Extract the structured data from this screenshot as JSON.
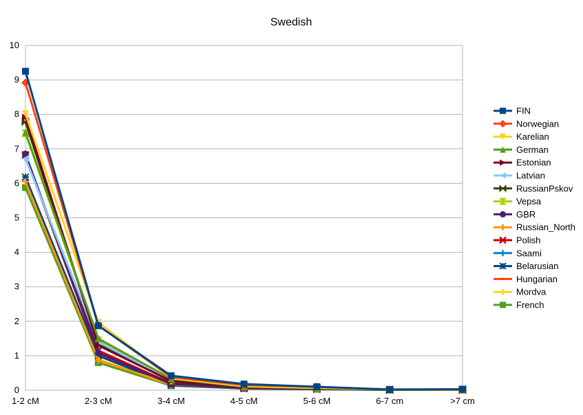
{
  "chart_data": {
    "type": "line",
    "title": "Swedish",
    "xlabel": "",
    "ylabel": "",
    "categories": [
      "1-2 cM",
      "2-3 cM",
      "3-4 cM",
      "4-5 cM",
      "5-6 cM",
      "6-7 cm",
      ">7 cm"
    ],
    "ylim": [
      0,
      10
    ],
    "yticks": [
      0,
      1,
      2,
      3,
      4,
      5,
      6,
      7,
      8,
      9,
      10
    ],
    "grid": "horizontal",
    "legend_position": "right",
    "series": [
      {
        "name": "FIN",
        "color": "#004586",
        "marker": "square",
        "values": [
          9.25,
          1.87,
          0.42,
          0.18,
          0.1,
          0.02,
          0.03
        ]
      },
      {
        "name": "Norwegian",
        "color": "#ff420e",
        "marker": "diamond",
        "values": [
          8.92,
          1.88,
          0.38,
          0.15,
          0.1,
          0.02,
          0.02
        ]
      },
      {
        "name": "Karelian",
        "color": "#ffd320",
        "marker": "triangle-down",
        "values": [
          8.02,
          1.97,
          0.35,
          0.12,
          0.07,
          0.03,
          0.02
        ]
      },
      {
        "name": "German",
        "color": "#579d1c",
        "marker": "triangle-up",
        "values": [
          7.48,
          1.5,
          0.33,
          0.1,
          0.06,
          0.01,
          0.01
        ]
      },
      {
        "name": "Estonian",
        "color": "#7e0021",
        "marker": "triangle-right",
        "values": [
          7.92,
          1.3,
          0.27,
          0.08,
          0.05,
          0.01,
          0.01
        ]
      },
      {
        "name": "Latvian",
        "color": "#83caff",
        "marker": "triangle-left",
        "values": [
          6.72,
          1.4,
          0.3,
          0.1,
          0.06,
          0.01,
          0.01
        ]
      },
      {
        "name": "RussianPskov",
        "color": "#314004",
        "marker": "x-bowtie",
        "values": [
          7.78,
          1.35,
          0.25,
          0.09,
          0.05,
          0.01,
          0.01
        ]
      },
      {
        "name": "Vepsa",
        "color": "#aecf00",
        "marker": "hourglass",
        "values": [
          7.45,
          1.45,
          0.28,
          0.1,
          0.06,
          0.01,
          0.01
        ]
      },
      {
        "name": "GBR",
        "color": "#4b1f6f",
        "marker": "circle",
        "values": [
          6.85,
          1.08,
          0.18,
          0.06,
          0.04,
          0.01,
          0.01
        ]
      },
      {
        "name": "Russian_North",
        "color": "#ff950e",
        "marker": "plus",
        "values": [
          6.05,
          0.87,
          0.17,
          0.06,
          0.04,
          0.01,
          0.01
        ]
      },
      {
        "name": "Polish",
        "color": "#c5000b",
        "marker": "x",
        "values": [
          6.82,
          1.15,
          0.2,
          0.07,
          0.04,
          0.01,
          0.01
        ]
      },
      {
        "name": "Saami",
        "color": "#0084d1",
        "marker": "plus",
        "values": [
          6.75,
          1.3,
          0.27,
          0.1,
          0.07,
          0.02,
          0.01
        ]
      },
      {
        "name": "Belarusian",
        "color": "#004586",
        "marker": "asterisk",
        "values": [
          6.18,
          1.0,
          0.15,
          0.05,
          0.03,
          0.01,
          0.01
        ]
      },
      {
        "name": "Hungarian",
        "color": "#ff420e",
        "marker": "dash",
        "values": [
          6.8,
          1.05,
          0.18,
          0.06,
          0.04,
          0.01,
          0.01
        ]
      },
      {
        "name": "Mordva",
        "color": "#ffd320",
        "marker": "plus",
        "values": [
          6.2,
          0.9,
          0.15,
          0.05,
          0.03,
          0.01,
          0.01
        ]
      },
      {
        "name": "French",
        "color": "#579d1c",
        "marker": "square",
        "values": [
          5.88,
          0.8,
          0.13,
          0.05,
          0.03,
          0.01,
          0.01
        ]
      }
    ]
  }
}
